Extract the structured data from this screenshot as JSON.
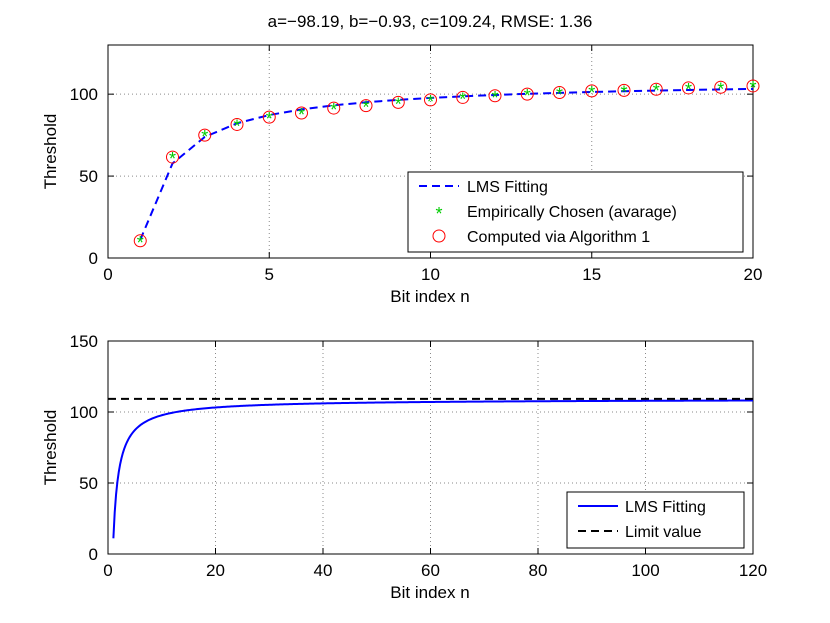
{
  "chart_data": [
    {
      "type": "line",
      "title": "a=−98.19, b=−0.93, c=109.24, RMSE: 1.36",
      "xlabel": "Bit index n",
      "ylabel": "Threshold",
      "xlim": [
        0,
        20
      ],
      "ylim": [
        0,
        130
      ],
      "xticks": [
        0,
        5,
        10,
        15,
        20
      ],
      "xtick_labels": [
        "0",
        "5",
        "10",
        "15",
        "20"
      ],
      "yticks": [
        0,
        50,
        100
      ],
      "ytick_labels": [
        "0",
        "50",
        "100"
      ],
      "grid": true,
      "legend_position": "bottom-right",
      "fit": {
        "a": -98.19,
        "b": -0.93,
        "c": 109.24
      },
      "series": [
        {
          "name": "LMS Fitting",
          "style": "dashed-line",
          "color": "#0000ff",
          "function": "a*n^b+c",
          "x_range": [
            1,
            20
          ]
        },
        {
          "name": "Empirically Chosen (avarage)",
          "style": "star-marker",
          "color": "#00cc00",
          "x": [
            1,
            2,
            3,
            4,
            5,
            6,
            7,
            8,
            9,
            10,
            11,
            12,
            13,
            14,
            15,
            16,
            17,
            18,
            19,
            20
          ],
          "values": [
            10.5,
            61.6,
            75,
            81.5,
            86,
            88.5,
            91.5,
            93,
            95,
            96.5,
            98,
            99,
            100,
            101,
            102,
            102.3,
            103,
            103.8,
            104.2,
            105
          ]
        },
        {
          "name": "Computed via Algorithm 1",
          "style": "circle-marker",
          "color": "#ff0000",
          "x": [
            1,
            2,
            3,
            4,
            5,
            6,
            7,
            8,
            9,
            10,
            11,
            12,
            13,
            14,
            15,
            16,
            17,
            18,
            19,
            20
          ],
          "values": [
            10.5,
            61.6,
            75,
            81.5,
            86,
            88.5,
            91.5,
            93,
            95,
            96.5,
            98,
            99,
            100,
            101,
            102,
            102.3,
            103,
            103.8,
            104.2,
            105
          ]
        }
      ]
    },
    {
      "type": "line",
      "title": "",
      "xlabel": "Bit index n",
      "ylabel": "Threshold",
      "xlim": [
        0,
        120
      ],
      "ylim": [
        0,
        150
      ],
      "xticks": [
        0,
        20,
        40,
        60,
        80,
        100,
        120
      ],
      "xtick_labels": [
        "0",
        "20",
        "40",
        "60",
        "80",
        "100",
        "120"
      ],
      "yticks": [
        0,
        50,
        100,
        150
      ],
      "ytick_labels": [
        "0",
        "50",
        "100",
        "150"
      ],
      "grid": true,
      "legend_position": "bottom-right",
      "fit": {
        "a": -98.19,
        "b": -0.93,
        "c": 109.24
      },
      "series": [
        {
          "name": "LMS Fitting",
          "style": "solid-line",
          "color": "#0000ff",
          "function": "a*n^b+c",
          "x_range": [
            1,
            120
          ]
        },
        {
          "name": "Limit value",
          "style": "dashed-line",
          "color": "#000000",
          "constant": 109.24,
          "x_range": [
            0,
            120
          ]
        }
      ]
    }
  ]
}
